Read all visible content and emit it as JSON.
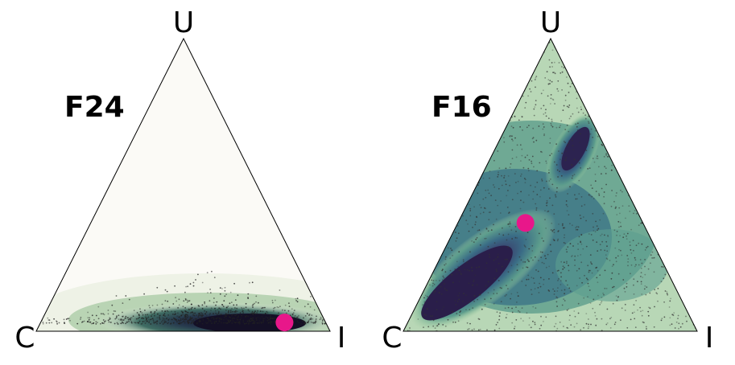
{
  "chart_data": [
    {
      "type": "scatter",
      "title": "F24",
      "vertices": {
        "top": "U",
        "left": "C",
        "right": "I"
      },
      "marker": {
        "C": 0.14,
        "U": 0.03,
        "I": 0.83,
        "color": "#e8178a"
      },
      "density": {
        "description_color_map": "dark purple (high) to pale green (low)",
        "centers": [
          {
            "C": 0.3,
            "U": 0.01,
            "I": 0.69,
            "spread": 0.07
          }
        ],
        "point_color": "#222222",
        "region_color": "#2f4f4f"
      }
    },
    {
      "type": "scatter",
      "title": "F16",
      "vertices": {
        "top": "U",
        "left": "C",
        "right": "I"
      },
      "marker": {
        "C": 0.4,
        "U": 0.37,
        "I": 0.23,
        "color": "#e8178a"
      },
      "density": {
        "description_color_map": "dark purple (high) to pale green (low)",
        "centers": [
          {
            "C": 0.8,
            "U": 0.15,
            "I": 0.05
          },
          {
            "C": 0.48,
            "U": 0.45,
            "I": 0.07
          },
          {
            "C": 0.35,
            "U": 0.2,
            "I": 0.45
          }
        ],
        "point_color": "#333333",
        "region_color": "#4a7f86"
      }
    }
  ]
}
